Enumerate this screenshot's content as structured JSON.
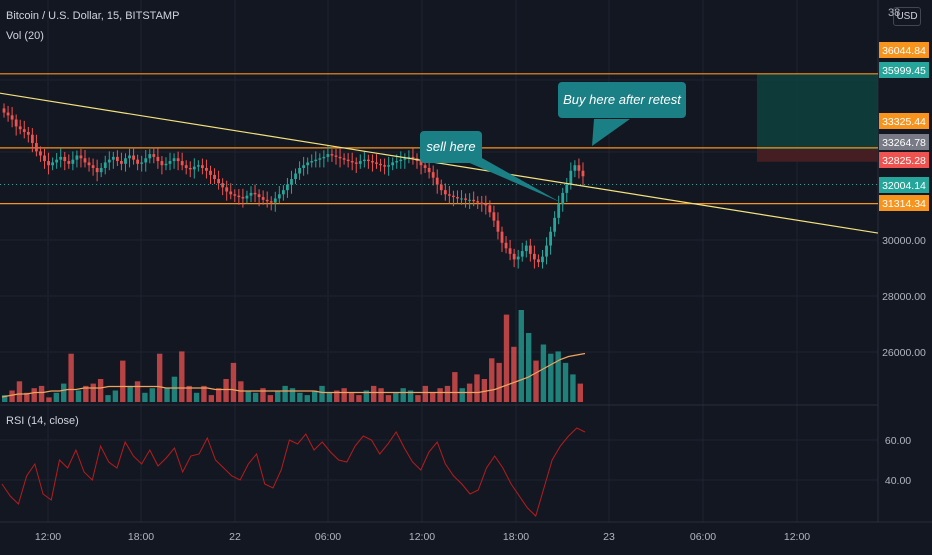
{
  "header": {
    "symbol_line": "Bitcoin / U.S. Dollar, 15, BITSTAMP",
    "volume_label": "Vol (20)",
    "rsi_label": "RSI (14, close)",
    "unit_button": "USD",
    "top_cut_label": "38"
  },
  "annotations": {
    "buy_callout": "Buy here after retest",
    "sell_callout": "sell here"
  },
  "colors": {
    "background": "#131722",
    "grid": "#1f2330",
    "up": "#26a69a",
    "down": "#ef5350",
    "level_line": "#f7941d",
    "trendline": "#f3e27c",
    "callout": "#1b7f86",
    "volume_ma": "#f0a35e",
    "rsi_line": "#b71c1c",
    "profit_zone": "#0e3f3d",
    "loss_zone": "#4a1f23"
  },
  "chart_data": {
    "type": "candlestick",
    "symbol": "Bitcoin / U.S. Dollar",
    "interval": "15",
    "exchange": "BITSTAMP",
    "x_ticks": [
      "12:00",
      "18:00",
      "22",
      "06:00",
      "12:00",
      "18:00",
      "23",
      "06:00",
      "12:00"
    ],
    "price_axis_ticks": [
      30000,
      28000,
      26000
    ],
    "price_tags": [
      {
        "value": "36044.84",
        "color": "#f7941d"
      },
      {
        "value": "35999.45",
        "color": "#26a69a"
      },
      {
        "value": "33325.44",
        "color": "#f7941d"
      },
      {
        "value": "33264.78",
        "color": "#787b86"
      },
      {
        "value": "32825.28",
        "color": "#ef5350"
      },
      {
        "value": "32004.14",
        "color": "#26a69a"
      },
      {
        "value": "31314.34",
        "color": "#f7941d"
      }
    ],
    "horizontal_levels": [
      35999.45,
      33325.44,
      31314.34
    ],
    "trendline": {
      "from": {
        "x": "21 10:00",
        "y": 35300
      },
      "to": {
        "x": "23 14:00",
        "y": 30250
      }
    },
    "position_tool": {
      "entry": 33264.78,
      "target": 35999.45,
      "stop": 32825.28
    },
    "close_series": [
      34600,
      34500,
      34350,
      34100,
      34000,
      33900,
      33800,
      33500,
      33200,
      33050,
      32850,
      32700,
      32800,
      32900,
      33000,
      32850,
      32750,
      32900,
      33050,
      32950,
      32800,
      32700,
      32600,
      32450,
      32600,
      32800,
      32900,
      33000,
      32850,
      32750,
      32950,
      33050,
      32900,
      32750,
      32800,
      32950,
      33100,
      33000,
      32850,
      32700,
      32750,
      32850,
      32950,
      32850,
      32700,
      32600,
      32550,
      32650,
      32700,
      32600,
      32500,
      32350,
      32200,
      32050,
      31900,
      31750,
      31650,
      31600,
      31550,
      31500,
      31600,
      31700,
      31650,
      31550,
      31450,
      31400,
      31350,
      31500,
      31650,
      31800,
      32000,
      32200,
      32400,
      32600,
      32700,
      32800,
      32850,
      32900,
      32950,
      33000,
      33100,
      33050,
      33000,
      32950,
      32900,
      32850,
      32800,
      32750,
      32850,
      32900,
      32850,
      32800,
      32750,
      32700,
      32650,
      32700,
      32800,
      32850,
      32900,
      32950,
      33000,
      32950,
      32850,
      32700,
      32600,
      32450,
      32250,
      32000,
      31800,
      31650,
      31600,
      31550,
      31500,
      31500,
      31450,
      31450,
      31400,
      31350,
      31300,
      31250,
      31000,
      30700,
      30300,
      29900,
      29700,
      29500,
      29300,
      29400,
      29600,
      29800,
      29500,
      29300,
      29200,
      29400,
      29800,
      30300,
      30800,
      31300,
      31700,
      32000,
      32500,
      32700,
      32500,
      32300
    ],
    "volume_ma": [
      2,
      3,
      4,
      4,
      5,
      5,
      6,
      6,
      7,
      7,
      8,
      8,
      8,
      9,
      9,
      9,
      9,
      9,
      9,
      9,
      8,
      8,
      8,
      8,
      8,
      8,
      7,
      7,
      7,
      6,
      6,
      6,
      6,
      6,
      6,
      6,
      6,
      6,
      6,
      5,
      5,
      5,
      5,
      5,
      5,
      5,
      5,
      5,
      5,
      5,
      5,
      5,
      5,
      5,
      5,
      5,
      5,
      5,
      5,
      6,
      7,
      9,
      11,
      13,
      15,
      18,
      21,
      24,
      27,
      29,
      30,
      31
    ],
    "volume_series": [
      3,
      5,
      9,
      4,
      6,
      7,
      2,
      4,
      8,
      21,
      5,
      7,
      8,
      10,
      3,
      5,
      18,
      7,
      9,
      4,
      6,
      21,
      6,
      11,
      22,
      7,
      4,
      7,
      3,
      6,
      10,
      17,
      9,
      5,
      4,
      6,
      3,
      5,
      7,
      6,
      4,
      3,
      5,
      7,
      4,
      5,
      6,
      4,
      3,
      5,
      7,
      6,
      3,
      4,
      6,
      5,
      3,
      7,
      4,
      6,
      7,
      13,
      6,
      8,
      12,
      10,
      19,
      17,
      38,
      24,
      40,
      30,
      18,
      25,
      21,
      22,
      17,
      12,
      8
    ],
    "rsi_ticks": [
      60,
      40
    ],
    "rsi_series": [
      38,
      32,
      28,
      42,
      48,
      33,
      30,
      50,
      46,
      55,
      44,
      40,
      57,
      49,
      46,
      59,
      52,
      48,
      55,
      47,
      51,
      56,
      44,
      52,
      53,
      61,
      50,
      46,
      42,
      40,
      48,
      53,
      38,
      36,
      45,
      60,
      58,
      63,
      55,
      59,
      54,
      50,
      49,
      57,
      62,
      60,
      53,
      58,
      64,
      56,
      49,
      45,
      54,
      59,
      48,
      42,
      38,
      33,
      35,
      46,
      52,
      46,
      38,
      32,
      26,
      22,
      36,
      50,
      57,
      62,
      66,
      64
    ]
  }
}
